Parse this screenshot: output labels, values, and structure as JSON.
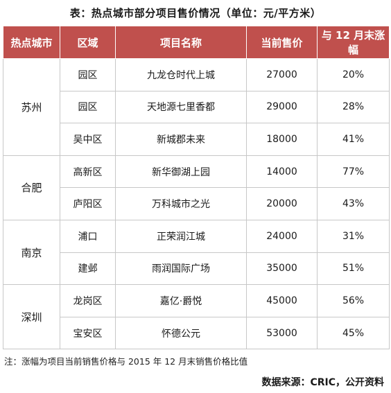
{
  "title": "表：热点城市部分项目售价情况（单位：元/平方米）",
  "table": {
    "headers": [
      "热点城市",
      "区域",
      "项目名称",
      "当前售价",
      "与 12 月末涨幅"
    ],
    "groups": [
      {
        "city": "苏州",
        "rows": [
          {
            "district": "园区",
            "project": "九龙仓时代上城",
            "price": "27000",
            "change": "20%"
          },
          {
            "district": "园区",
            "project": "天地源七里香都",
            "price": "29000",
            "change": "28%"
          },
          {
            "district": "吴中区",
            "project": "新城郡未来",
            "price": "18000",
            "change": "41%"
          }
        ]
      },
      {
        "city": "合肥",
        "rows": [
          {
            "district": "高新区",
            "project": "新华御湖上园",
            "price": "14000",
            "change": "77%"
          },
          {
            "district": "庐阳区",
            "project": "万科城市之光",
            "price": "20000",
            "change": "43%"
          }
        ]
      },
      {
        "city": "南京",
        "rows": [
          {
            "district": "浦口",
            "project": "正荣润江城",
            "price": "24000",
            "change": "31%"
          },
          {
            "district": "建邺",
            "project": "雨润国际广场",
            "price": "35000",
            "change": "51%"
          }
        ]
      },
      {
        "city": "深圳",
        "rows": [
          {
            "district": "龙岗区",
            "project": "嘉亿·爵悦",
            "price": "45000",
            "change": "56%"
          },
          {
            "district": "宝安区",
            "project": "怀德公元",
            "price": "53000",
            "change": "45%"
          }
        ]
      }
    ]
  },
  "note": "注：涨幅为项目当前销售价格与 2015 年 12 月末销售价格比值",
  "source": "数据来源：CRIC，公开资料",
  "colors": {
    "header_bg": "#c0504d",
    "header_text": "#ffffff",
    "grid": "#c7c7c7"
  }
}
